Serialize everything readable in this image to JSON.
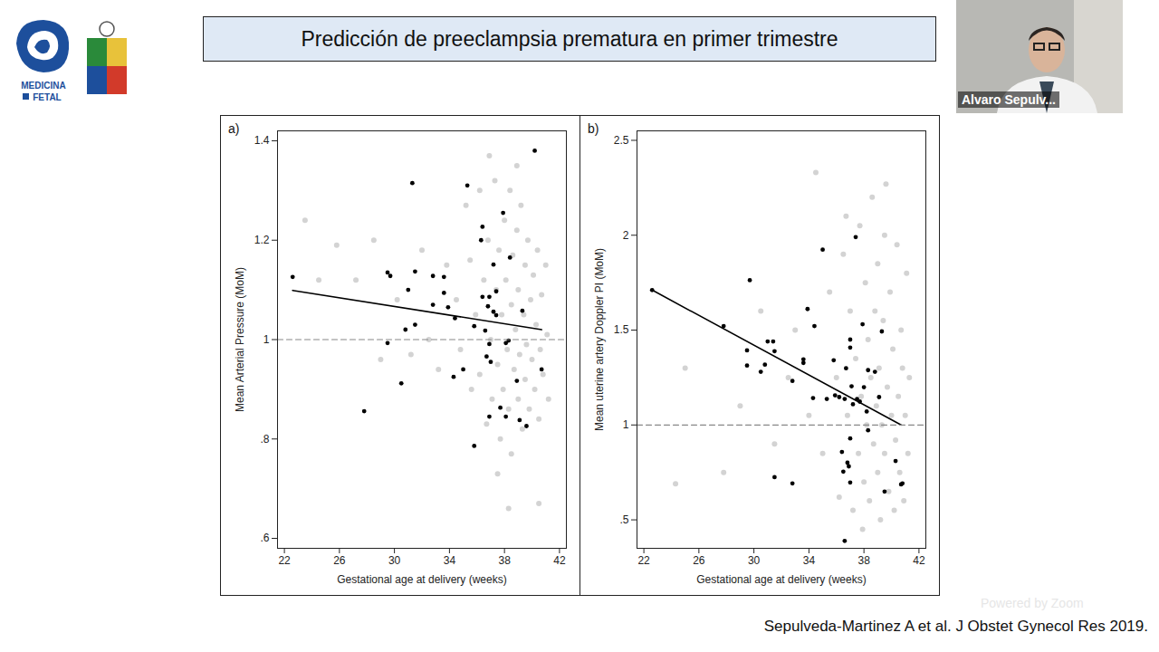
{
  "slide": {
    "title": "Predicción de preeclampsia prematura en primer trimestre",
    "logo_text": [
      "MEDICINA",
      "FETAL"
    ],
    "citation": "Sepulveda-Martinez A et al. J Obstet Gynecol Res 2019.",
    "presenter": "Alvaro Sepulv...",
    "watermark": "Powered by Zoom"
  },
  "chart_data": [
    {
      "type": "scatter",
      "panel": "a)",
      "x_label": "Gestational age at delivery (weeks)",
      "y_label": "Mean Arterial Pressure (MoM)",
      "xlim": [
        21.5,
        42.5
      ],
      "xticks": [
        22,
        26,
        30,
        34,
        38,
        42
      ],
      "ylim": [
        0.58,
        1.42
      ],
      "yticks": [
        {
          "value": 0.6,
          "label": ".6"
        },
        {
          "value": 0.8,
          "label": ".8"
        },
        1,
        1.2,
        1.4
      ],
      "grid": false,
      "series": [
        {
          "type": "scatter",
          "marker": "circle",
          "color": "#d3d3d3",
          "x": [
            23.5,
            24.5,
            25.8,
            27.2,
            28.5,
            29,
            30.2,
            31.2,
            32,
            32.5,
            33.2,
            33.8,
            34.5,
            34.8,
            35.2,
            35.5,
            35.6,
            35.9,
            36.2,
            36.2,
            36.5,
            36.7,
            36.8,
            37,
            37.1,
            37.3,
            37.4,
            37.5,
            37.6,
            37.7,
            37.8,
            37.9,
            38,
            38.1,
            38.2,
            38.3,
            38.4,
            38.5,
            38.5,
            38.6,
            38.7,
            38.8,
            38.9,
            39,
            39,
            39.1,
            39.2,
            39.3,
            39.4,
            39.5,
            39.5,
            39.6,
            39.7,
            39.8,
            39.9,
            40,
            40.1,
            40.2,
            40.3,
            40.4,
            40.5,
            40.6,
            40.7,
            40.8,
            41,
            41.1,
            41.2,
            38.3,
            40.5,
            37.5,
            36.9,
            38.9
          ],
          "values": [
            1.24,
            1.12,
            1.19,
            1.12,
            1.2,
            0.96,
            1.08,
            0.97,
            1.18,
            1.0,
            0.94,
            1.15,
            1.08,
            0.98,
            1.27,
            1.16,
            0.9,
            1.05,
            1.3,
            0.93,
            1.12,
            0.83,
            1.2,
            1.0,
            0.88,
            1.32,
            1.1,
            0.95,
            1.18,
            0.8,
            1.05,
            0.9,
            1.24,
            1.12,
            0.98,
            0.86,
            1.3,
            1.07,
            0.77,
            1.17,
            0.94,
            1.02,
            1.22,
            0.88,
            1.1,
            0.97,
            1.27,
            0.82,
            1.05,
            1.15,
            0.92,
            0.99,
            1.2,
            0.86,
            1.08,
            0.96,
            1.13,
            0.9,
            1.03,
            1.18,
            0.84,
            0.98,
            1.09,
            0.93,
            1.15,
            1.01,
            0.88,
            0.66,
            0.67,
            0.73,
            1.37,
            1.35
          ]
        },
        {
          "type": "scatter",
          "marker": "circle",
          "color": "#000000",
          "x": [
            22.6,
            27.8,
            29.5,
            29.7,
            29.5,
            30.5,
            30.8,
            31.0,
            31.3,
            31.5,
            31.5,
            32.8,
            32.8,
            33.6,
            33.6,
            33.9,
            34.4,
            34.3,
            35.0,
            35.3,
            35.8,
            35.8,
            36.3,
            36.4,
            36.4,
            36.6,
            36.8,
            36.7,
            36.9,
            36.9,
            37.0,
            36.9,
            37.2,
            37.2,
            37.4,
            37.4,
            37.7,
            37.9,
            38.1,
            38.3,
            38.1,
            38.4,
            38.9,
            39.1,
            39.3,
            39.6,
            40.2,
            40.7
          ],
          "values": [
            1.126,
            0.856,
            1.135,
            1.128,
            0.993,
            0.912,
            1.02,
            1.1,
            1.315,
            1.137,
            1.03,
            1.128,
            1.07,
            1.126,
            1.094,
            1.065,
            1.043,
            0.925,
            0.94,
            1.31,
            1.027,
            0.786,
            1.2,
            1.227,
            1.086,
            1.018,
            1.067,
            0.966,
            1.086,
            0.845,
            0.955,
            0.991,
            1.151,
            1.056,
            1.097,
            1.049,
            0.863,
            1.255,
            0.993,
            0.998,
            0.845,
            1.165,
            0.917,
            0.838,
            1.058,
            0.826,
            1.38,
            0.94
          ]
        },
        {
          "type": "line",
          "line_style": "solid",
          "color": "#000000",
          "x": [
            22.6,
            40.7
          ],
          "values": [
            1.099,
            1.02
          ]
        },
        {
          "type": "line",
          "line_style": "dashed",
          "color": "#888888",
          "x": [
            21.5,
            42.5
          ],
          "values": [
            1,
            1
          ]
        }
      ]
    },
    {
      "type": "scatter",
      "panel": "b)",
      "x_label": "Gestational age at delivery (weeks)",
      "y_label": "Mean uterine artery Doppler PI (MoM)",
      "xlim": [
        21.5,
        42.5
      ],
      "xticks": [
        22,
        26,
        30,
        34,
        38,
        42
      ],
      "ylim": [
        0.35,
        2.55
      ],
      "yticks": [
        {
          "value": 0.5,
          "label": ".5"
        },
        1,
        1.5,
        2,
        2.5
      ],
      "grid": false,
      "series": [
        {
          "type": "scatter",
          "marker": "circle",
          "color": "#d3d3d3",
          "x": [
            24.3,
            25,
            27.8,
            29,
            30.5,
            31.5,
            32.5,
            33,
            34,
            34.5,
            35,
            35.5,
            36,
            36.2,
            36.5,
            36.8,
            37,
            37.2,
            37.4,
            37.6,
            37.7,
            37.8,
            38,
            38.1,
            38.2,
            38.3,
            38.4,
            38.5,
            38.6,
            38.7,
            38.8,
            38.9,
            39,
            39,
            39.1,
            39.2,
            39.3,
            39.4,
            39.5,
            39.6,
            39.7,
            39.8,
            39.9,
            40,
            40.1,
            40.2,
            40.3,
            40.4,
            40.5,
            40.6,
            40.7,
            40.8,
            40.9,
            41,
            41.1,
            41.2,
            41.3,
            36.7,
            37.9,
            39.5
          ],
          "values": [
            0.69,
            1.3,
            0.75,
            1.1,
            1.6,
            0.9,
            1.25,
            1.5,
            1.05,
            2.33,
            0.85,
            1.7,
            1.25,
            0.62,
            1.9,
            1.05,
            1.6,
            0.55,
            1.35,
            0.85,
            2.05,
            1.15,
            0.7,
            1.75,
            1.0,
            1.45,
            0.6,
            1.25,
            2.2,
            0.9,
            1.6,
            1.1,
            0.75,
            1.85,
            1.3,
            0.5,
            1.0,
            1.55,
            0.85,
            2.27,
            1.2,
            0.65,
            1.7,
            1.05,
            1.4,
            0.55,
            0.92,
            1.95,
            1.15,
            0.75,
            1.5,
            1.3,
            0.6,
            1.05,
            1.8,
            0.85,
            1.25,
            2.1,
            0.45,
            2.0
          ]
        },
        {
          "type": "scatter",
          "marker": "circle",
          "color": "#000000",
          "x": [
            22.6,
            27.8,
            29.5,
            29.5,
            29.7,
            30.5,
            30.8,
            31.0,
            31.4,
            31.5,
            31.5,
            32.8,
            32.8,
            33.6,
            33.6,
            33.9,
            34.3,
            34.4,
            35.0,
            35.3,
            35.8,
            35.9,
            36.2,
            36.4,
            36.5,
            36.6,
            36.6,
            36.7,
            36.8,
            36.9,
            37.0,
            37.0,
            37.0,
            37.0,
            37.1,
            37.2,
            37.4,
            37.5,
            37.7,
            37.9,
            38.0,
            38.2,
            38.3,
            38.3,
            38.8,
            39.1,
            39.3,
            39.5,
            40.3,
            40.7,
            40.8
          ],
          "values": [
            1.711,
            1.521,
            1.393,
            1.313,
            1.763,
            1.28,
            1.318,
            1.44,
            1.44,
            1.389,
            0.725,
            1.232,
            0.692,
            1.327,
            1.346,
            1.611,
            1.142,
            1.521,
            1.924,
            1.137,
            1.341,
            1.156,
            1.147,
            0.858,
            0.754,
            1.137,
            0.389,
            1.299,
            0.801,
            0.782,
            1.408,
            1.45,
            0.929,
            0.697,
            1.204,
            1.109,
            1.99,
            1.137,
            1.123,
            1.531,
            1.199,
            1.071,
            0.972,
            1.289,
            1.28,
            1.147,
            1.493,
            0.649,
            0.81,
            0.687,
            0.692
          ]
        },
        {
          "type": "line",
          "line_style": "solid",
          "color": "#000000",
          "x": [
            22.6,
            40.7
          ],
          "values": [
            1.711,
            1.0
          ]
        },
        {
          "type": "line",
          "line_style": "dashed",
          "color": "#888888",
          "x": [
            21.5,
            42.5
          ],
          "values": [
            1,
            1
          ]
        }
      ]
    }
  ]
}
